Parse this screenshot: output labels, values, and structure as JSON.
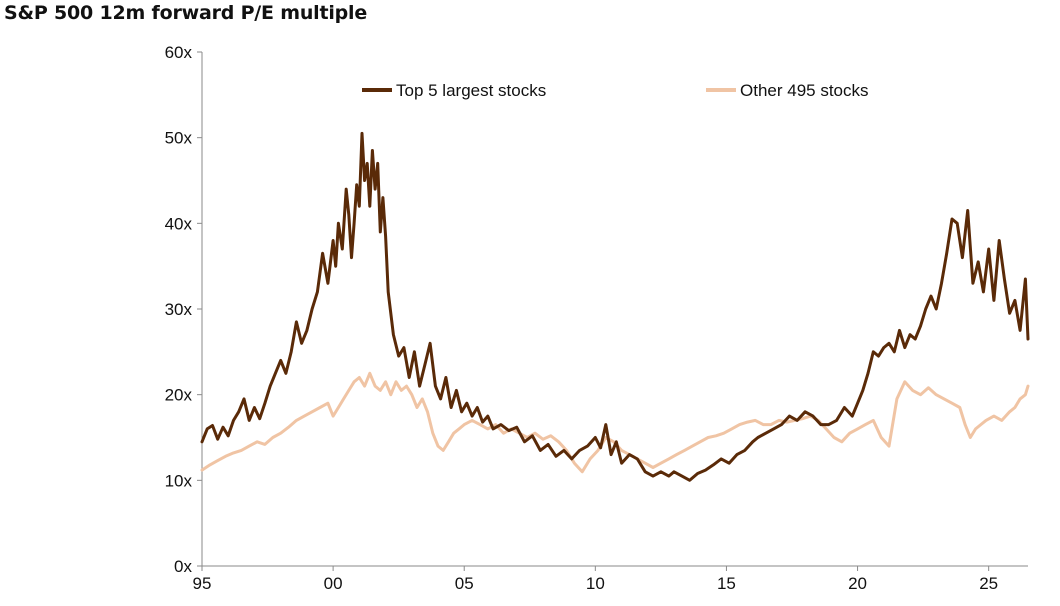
{
  "chart_data": {
    "type": "line",
    "title": "S&P 500 12m forward P/E multiple",
    "xlabel": "",
    "ylabel": "",
    "x_ticks": [
      "95",
      "00",
      "05",
      "10",
      "15",
      "20",
      "25"
    ],
    "y_ticks": [
      "0x",
      "10x",
      "20x",
      "30x",
      "40x",
      "50x",
      "60x"
    ],
    "xlim": [
      1995,
      2026.5
    ],
    "ylim": [
      0,
      60
    ],
    "grid": false,
    "legend_position": "top",
    "series": [
      {
        "name": "Top 5 largest stocks",
        "color": "#5a2a08",
        "points": [
          [
            1995.0,
            14.5
          ],
          [
            1995.2,
            16.0
          ],
          [
            1995.4,
            16.4
          ],
          [
            1995.6,
            14.8
          ],
          [
            1995.8,
            16.2
          ],
          [
            1996.0,
            15.2
          ],
          [
            1996.2,
            17.0
          ],
          [
            1996.4,
            18.0
          ],
          [
            1996.6,
            19.5
          ],
          [
            1996.8,
            17.0
          ],
          [
            1997.0,
            18.5
          ],
          [
            1997.2,
            17.2
          ],
          [
            1997.4,
            19.0
          ],
          [
            1997.6,
            21.0
          ],
          [
            1997.8,
            22.5
          ],
          [
            1998.0,
            24.0
          ],
          [
            1998.2,
            22.5
          ],
          [
            1998.4,
            25.0
          ],
          [
            1998.6,
            28.5
          ],
          [
            1998.8,
            26.0
          ],
          [
            1999.0,
            27.5
          ],
          [
            1999.2,
            30.0
          ],
          [
            1999.4,
            32.0
          ],
          [
            1999.6,
            36.5
          ],
          [
            1999.8,
            33.0
          ],
          [
            2000.0,
            38.0
          ],
          [
            2000.1,
            35.0
          ],
          [
            2000.2,
            40.0
          ],
          [
            2000.35,
            37.0
          ],
          [
            2000.5,
            44.0
          ],
          [
            2000.6,
            41.0
          ],
          [
            2000.7,
            36.0
          ],
          [
            2000.8,
            40.0
          ],
          [
            2000.9,
            44.5
          ],
          [
            2001.0,
            42.0
          ],
          [
            2001.1,
            50.5
          ],
          [
            2001.2,
            45.0
          ],
          [
            2001.3,
            47.0
          ],
          [
            2001.4,
            42.0
          ],
          [
            2001.5,
            48.5
          ],
          [
            2001.6,
            44.0
          ],
          [
            2001.7,
            47.0
          ],
          [
            2001.8,
            39.0
          ],
          [
            2001.9,
            43.0
          ],
          [
            2002.0,
            38.5
          ],
          [
            2002.1,
            32.0
          ],
          [
            2002.3,
            27.0
          ],
          [
            2002.5,
            24.5
          ],
          [
            2002.7,
            25.5
          ],
          [
            2002.9,
            22.0
          ],
          [
            2003.1,
            25.0
          ],
          [
            2003.3,
            21.0
          ],
          [
            2003.5,
            23.5
          ],
          [
            2003.7,
            26.0
          ],
          [
            2003.9,
            21.0
          ],
          [
            2004.1,
            19.5
          ],
          [
            2004.3,
            22.0
          ],
          [
            2004.5,
            18.5
          ],
          [
            2004.7,
            20.5
          ],
          [
            2004.9,
            18.0
          ],
          [
            2005.1,
            19.0
          ],
          [
            2005.3,
            17.5
          ],
          [
            2005.5,
            18.5
          ],
          [
            2005.7,
            16.8
          ],
          [
            2005.9,
            17.5
          ],
          [
            2006.1,
            16.0
          ],
          [
            2006.4,
            16.5
          ],
          [
            2006.7,
            15.8
          ],
          [
            2007.0,
            16.2
          ],
          [
            2007.3,
            14.5
          ],
          [
            2007.6,
            15.2
          ],
          [
            2007.9,
            13.5
          ],
          [
            2008.2,
            14.2
          ],
          [
            2008.5,
            12.8
          ],
          [
            2008.8,
            13.5
          ],
          [
            2009.1,
            12.5
          ],
          [
            2009.4,
            13.5
          ],
          [
            2009.7,
            14.0
          ],
          [
            2010.0,
            15.0
          ],
          [
            2010.2,
            13.8
          ],
          [
            2010.4,
            16.5
          ],
          [
            2010.6,
            13.0
          ],
          [
            2010.8,
            14.5
          ],
          [
            2011.0,
            12.0
          ],
          [
            2011.3,
            13.0
          ],
          [
            2011.6,
            12.5
          ],
          [
            2011.9,
            11.0
          ],
          [
            2012.2,
            10.5
          ],
          [
            2012.5,
            11.0
          ],
          [
            2012.8,
            10.5
          ],
          [
            2013.0,
            11.0
          ],
          [
            2013.3,
            10.5
          ],
          [
            2013.6,
            10.0
          ],
          [
            2013.9,
            10.8
          ],
          [
            2014.2,
            11.2
          ],
          [
            2014.5,
            11.8
          ],
          [
            2014.8,
            12.5
          ],
          [
            2015.1,
            12.0
          ],
          [
            2015.4,
            13.0
          ],
          [
            2015.7,
            13.5
          ],
          [
            2016.0,
            14.5
          ],
          [
            2016.2,
            15.0
          ],
          [
            2016.5,
            15.5
          ],
          [
            2016.8,
            16.0
          ],
          [
            2017.1,
            16.5
          ],
          [
            2017.4,
            17.5
          ],
          [
            2017.7,
            17.0
          ],
          [
            2018.0,
            18.0
          ],
          [
            2018.3,
            17.5
          ],
          [
            2018.6,
            16.5
          ],
          [
            2018.9,
            16.5
          ],
          [
            2019.2,
            17.0
          ],
          [
            2019.5,
            18.5
          ],
          [
            2019.8,
            17.5
          ],
          [
            2020.0,
            19.0
          ],
          [
            2020.2,
            20.5
          ],
          [
            2020.4,
            22.5
          ],
          [
            2020.6,
            25.0
          ],
          [
            2020.8,
            24.5
          ],
          [
            2021.0,
            25.5
          ],
          [
            2021.2,
            26.0
          ],
          [
            2021.4,
            25.0
          ],
          [
            2021.6,
            27.5
          ],
          [
            2021.8,
            25.5
          ],
          [
            2022.0,
            27.0
          ],
          [
            2022.2,
            26.5
          ],
          [
            2022.4,
            28.0
          ],
          [
            2022.6,
            30.0
          ],
          [
            2022.8,
            31.5
          ],
          [
            2023.0,
            30.0
          ],
          [
            2023.2,
            33.0
          ],
          [
            2023.4,
            36.5
          ],
          [
            2023.6,
            40.5
          ],
          [
            2023.8,
            40.0
          ],
          [
            2024.0,
            36.0
          ],
          [
            2024.2,
            41.5
          ],
          [
            2024.4,
            33.0
          ],
          [
            2024.6,
            35.5
          ],
          [
            2024.8,
            32.0
          ],
          [
            2025.0,
            37.0
          ],
          [
            2025.2,
            31.0
          ],
          [
            2025.4,
            38.0
          ],
          [
            2025.6,
            33.5
          ],
          [
            2025.8,
            29.5
          ],
          [
            2026.0,
            31.0
          ],
          [
            2026.2,
            27.5
          ],
          [
            2026.4,
            33.5
          ],
          [
            2026.5,
            26.5
          ]
        ]
      },
      {
        "name": "Other 495 stocks",
        "color": "#f0c4a4",
        "points": [
          [
            1995.0,
            11.2
          ],
          [
            1995.3,
            11.8
          ],
          [
            1995.6,
            12.3
          ],
          [
            1995.9,
            12.8
          ],
          [
            1996.2,
            13.2
          ],
          [
            1996.5,
            13.5
          ],
          [
            1996.8,
            14.0
          ],
          [
            1997.1,
            14.5
          ],
          [
            1997.4,
            14.2
          ],
          [
            1997.7,
            15.0
          ],
          [
            1998.0,
            15.5
          ],
          [
            1998.3,
            16.2
          ],
          [
            1998.6,
            17.0
          ],
          [
            1998.9,
            17.5
          ],
          [
            1999.2,
            18.0
          ],
          [
            1999.5,
            18.5
          ],
          [
            1999.8,
            19.0
          ],
          [
            2000.0,
            17.5
          ],
          [
            2000.2,
            18.5
          ],
          [
            2000.4,
            19.5
          ],
          [
            2000.6,
            20.5
          ],
          [
            2000.8,
            21.5
          ],
          [
            2001.0,
            22.0
          ],
          [
            2001.2,
            21.0
          ],
          [
            2001.4,
            22.5
          ],
          [
            2001.6,
            21.0
          ],
          [
            2001.8,
            20.5
          ],
          [
            2002.0,
            21.5
          ],
          [
            2002.2,
            20.0
          ],
          [
            2002.4,
            21.5
          ],
          [
            2002.6,
            20.5
          ],
          [
            2002.8,
            21.0
          ],
          [
            2003.0,
            20.0
          ],
          [
            2003.2,
            18.5
          ],
          [
            2003.4,
            19.5
          ],
          [
            2003.6,
            18.0
          ],
          [
            2003.8,
            15.5
          ],
          [
            2004.0,
            14.0
          ],
          [
            2004.2,
            13.5
          ],
          [
            2004.4,
            14.5
          ],
          [
            2004.6,
            15.5
          ],
          [
            2004.8,
            16.0
          ],
          [
            2005.0,
            16.5
          ],
          [
            2005.3,
            17.0
          ],
          [
            2005.6,
            16.5
          ],
          [
            2005.9,
            16.0
          ],
          [
            2006.2,
            16.5
          ],
          [
            2006.5,
            15.5
          ],
          [
            2006.8,
            16.0
          ],
          [
            2007.1,
            15.5
          ],
          [
            2007.4,
            15.0
          ],
          [
            2007.7,
            15.5
          ],
          [
            2008.0,
            14.8
          ],
          [
            2008.3,
            15.2
          ],
          [
            2008.6,
            14.5
          ],
          [
            2008.9,
            13.5
          ],
          [
            2009.2,
            12.0
          ],
          [
            2009.5,
            11.0
          ],
          [
            2009.8,
            12.5
          ],
          [
            2010.1,
            13.5
          ],
          [
            2010.4,
            15.0
          ],
          [
            2010.7,
            14.5
          ],
          [
            2011.0,
            13.5
          ],
          [
            2011.3,
            13.0
          ],
          [
            2011.6,
            12.5
          ],
          [
            2011.9,
            12.0
          ],
          [
            2012.2,
            11.5
          ],
          [
            2012.5,
            12.0
          ],
          [
            2012.8,
            12.5
          ],
          [
            2013.1,
            13.0
          ],
          [
            2013.4,
            13.5
          ],
          [
            2013.7,
            14.0
          ],
          [
            2014.0,
            14.5
          ],
          [
            2014.3,
            15.0
          ],
          [
            2014.6,
            15.2
          ],
          [
            2014.9,
            15.5
          ],
          [
            2015.2,
            16.0
          ],
          [
            2015.5,
            16.5
          ],
          [
            2015.8,
            16.8
          ],
          [
            2016.1,
            17.0
          ],
          [
            2016.4,
            16.5
          ],
          [
            2016.7,
            16.5
          ],
          [
            2017.0,
            17.0
          ],
          [
            2017.3,
            16.8
          ],
          [
            2017.6,
            17.0
          ],
          [
            2017.9,
            17.2
          ],
          [
            2018.2,
            17.5
          ],
          [
            2018.5,
            17.0
          ],
          [
            2018.8,
            16.0
          ],
          [
            2019.1,
            15.0
          ],
          [
            2019.4,
            14.5
          ],
          [
            2019.7,
            15.5
          ],
          [
            2020.0,
            16.0
          ],
          [
            2020.3,
            16.5
          ],
          [
            2020.6,
            17.0
          ],
          [
            2020.9,
            15.0
          ],
          [
            2021.2,
            14.0
          ],
          [
            2021.5,
            19.5
          ],
          [
            2021.8,
            21.5
          ],
          [
            2022.1,
            20.5
          ],
          [
            2022.4,
            20.0
          ],
          [
            2022.7,
            20.8
          ],
          [
            2023.0,
            20.0
          ],
          [
            2023.3,
            19.5
          ],
          [
            2023.6,
            19.0
          ],
          [
            2023.9,
            18.5
          ],
          [
            2024.1,
            16.5
          ],
          [
            2024.3,
            15.0
          ],
          [
            2024.5,
            16.0
          ],
          [
            2024.7,
            16.5
          ],
          [
            2024.9,
            17.0
          ],
          [
            2025.2,
            17.5
          ],
          [
            2025.5,
            17.0
          ],
          [
            2025.8,
            18.0
          ],
          [
            2026.0,
            18.5
          ],
          [
            2026.2,
            19.5
          ],
          [
            2026.4,
            20.0
          ],
          [
            2026.5,
            21.0
          ]
        ]
      }
    ]
  }
}
